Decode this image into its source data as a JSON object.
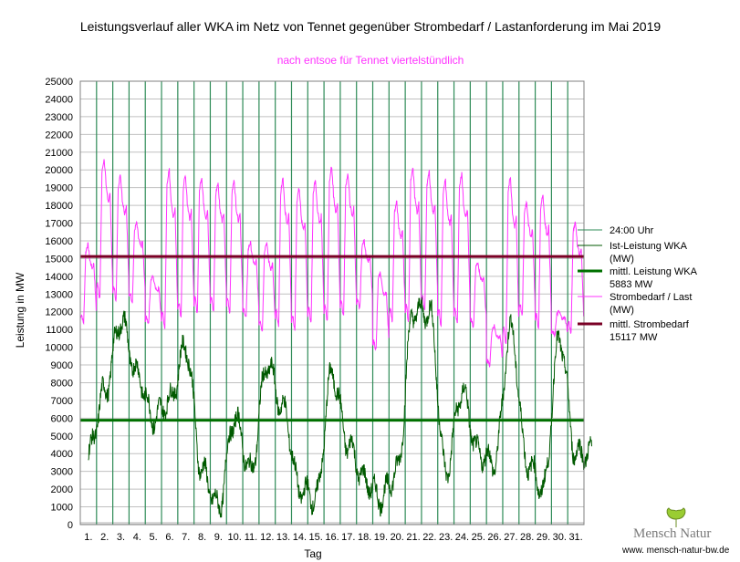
{
  "chart_data": {
    "type": "line",
    "title": "Leistungsverlauf aller WKA im Netz von Tennet gegenüber  Strombedarf / Lastanforderung im Mai 2019",
    "subtitle": "nach entsoe für Tennet viertelstündlich",
    "xlabel": "Tag",
    "ylabel": "Leistung in MW",
    "ylim": [
      0,
      25000
    ],
    "ytick_step": 1000,
    "yticks": [
      "0",
      "1000",
      "2000",
      "3000",
      "4000",
      "5000",
      "6000",
      "7000",
      "8000",
      "9000",
      "10000",
      "11000",
      "12000",
      "13000",
      "14000",
      "15000",
      "16000",
      "17000",
      "18000",
      "19000",
      "20000",
      "21000",
      "22000",
      "23000",
      "24000",
      "25000"
    ],
    "xlim": [
      0,
      31
    ],
    "categories": [
      "1.",
      "2.",
      "3.",
      "4.",
      "5.",
      "6.",
      "7.",
      "8.",
      "9.",
      "10.",
      "11.",
      "12.",
      "13.",
      "14.",
      "15.",
      "16.",
      "17.",
      "18.",
      "19.",
      "20.",
      "21.",
      "22.",
      "23.",
      "24.",
      "25.",
      "26.",
      "27.",
      "28.",
      "29.",
      "30.",
      "31."
    ],
    "day_peaks_load": [
      15800,
      20600,
      19700,
      17000,
      14000,
      20000,
      19700,
      19600,
      19300,
      19400,
      15900,
      15900,
      19500,
      19000,
      19400,
      20200,
      19800,
      16000,
      14200,
      18200,
      20200,
      19900,
      19400,
      19800,
      14800,
      11200,
      19600,
      18200,
      18600,
      12000,
      17100
    ],
    "day_night_load": [
      11400,
      12800,
      12700,
      12600,
      11400,
      11100,
      11700,
      12000,
      12100,
      12000,
      11700,
      11000,
      11200,
      11000,
      11400,
      11500,
      11800,
      12200,
      9900,
      11500,
      11500,
      12100,
      11300,
      11400,
      11200,
      9000,
      10200,
      11800,
      11100,
      10700,
      10800
    ],
    "wka_daily": [
      4000,
      7500,
      11500,
      8500,
      6000,
      7000,
      10000,
      3000,
      1000,
      6000,
      3000,
      9000,
      6500,
      2000,
      1500,
      8500,
      4500,
      2500,
      1500,
      3000,
      12000,
      12000,
      3000,
      7500,
      4000,
      3500,
      11000,
      3500,
      2000,
      10500,
      4000
    ],
    "series": [
      {
        "name": "24:00 Uhr",
        "color": "#2e8b57"
      },
      {
        "name": "Ist-Leistung WKA (MW)",
        "color": "#005a00"
      },
      {
        "name": "mittl. Leistung WKA 5883 MW",
        "color": "#007000",
        "value": 5883
      },
      {
        "name": "Strombedarf / Last (MW)",
        "color": "#ff33ff"
      },
      {
        "name": "mittl. Strombedarf 15117 MW",
        "color": "#7a0025",
        "value": 15117
      }
    ]
  },
  "legend": {
    "items": [
      {
        "line1": "24:00 Uhr",
        "line2": ""
      },
      {
        "line1": "Ist-Leistung WKA",
        "line2": "(MW)"
      },
      {
        "line1": "mittl. Leistung WKA",
        "line2": "5883 MW"
      },
      {
        "line1": "Strombedarf / Last",
        "line2": "(MW)"
      },
      {
        "line1": "mittl. Strombedarf",
        "line2": "15117 MW"
      }
    ]
  },
  "logo": {
    "brand": "Mensch Natur",
    "url": "www. mensch-natur-bw.de"
  },
  "colors": {
    "title": "#000000",
    "subtitle": "#ff33ff",
    "grid": "#c0c0c0",
    "day_line": "#2e8b57"
  }
}
